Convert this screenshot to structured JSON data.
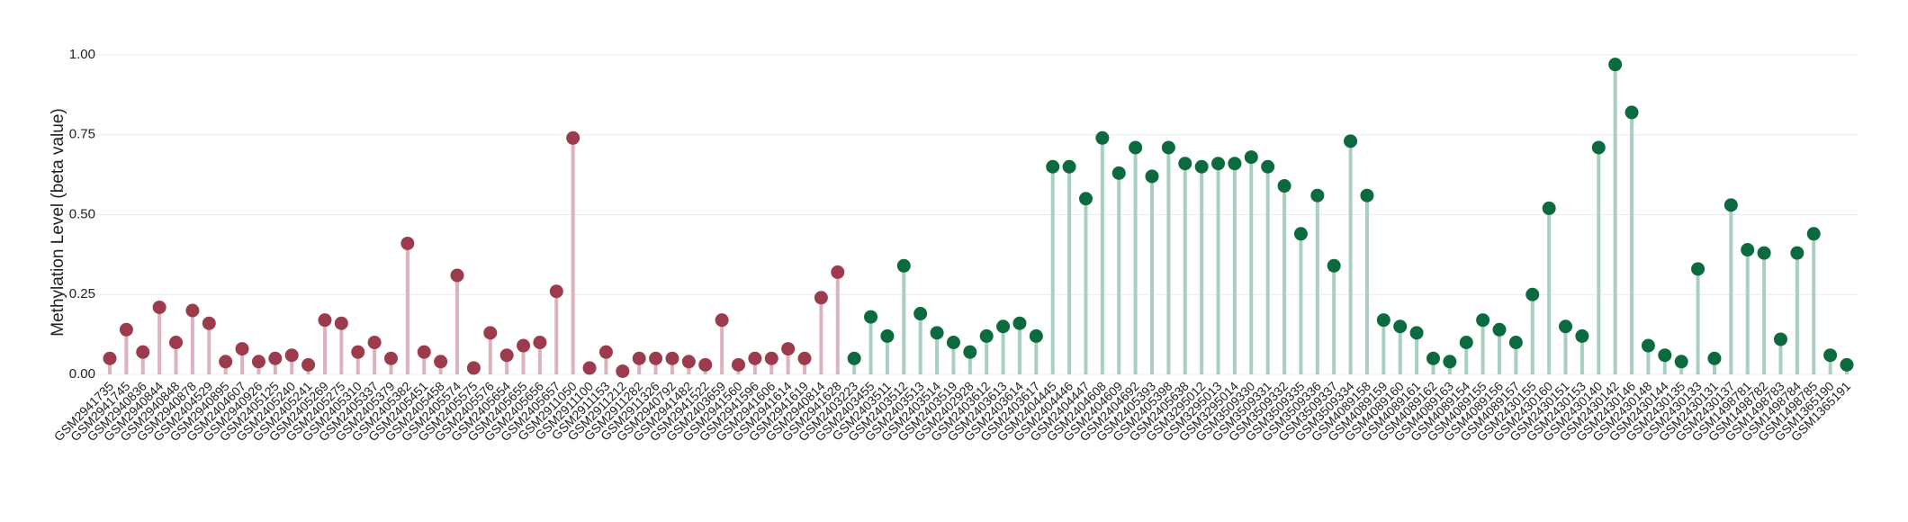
{
  "chart_data": {
    "type": "lollipop",
    "y_label": "Methylation Level (beta value)",
    "ylim": [
      0,
      1
    ],
    "yticks": [
      {
        "value": 0,
        "label": "0.00"
      },
      {
        "value": 0.25,
        "label": "0.25"
      },
      {
        "value": 0.5,
        "label": "0.50"
      },
      {
        "value": 0.75,
        "label": "0.75"
      },
      {
        "value": 1,
        "label": "1.00"
      }
    ],
    "grid": true,
    "categories": [
      "GSM2941735",
      "GSM2941745",
      "GSM2940836",
      "GSM2940844",
      "GSM2940848",
      "GSM2940878",
      "GSM2404529",
      "GSM2940895",
      "GSM2404607",
      "GSM2940926",
      "GSM2405125",
      "GSM2405240",
      "GSM2405241",
      "GSM2405269",
      "GSM2405275",
      "GSM2405310",
      "GSM2405337",
      "GSM2405379",
      "GSM2405382",
      "GSM2405451",
      "GSM2405458",
      "GSM2405574",
      "GSM2405575",
      "GSM2405576",
      "GSM2405654",
      "GSM2405655",
      "GSM2405656",
      "GSM2405657",
      "GSM2911050",
      "GSM2911100",
      "GSM2911153",
      "GSM2911212",
      "GSM2911282",
      "GSM2911326",
      "GSM2940792",
      "GSM2941482",
      "GSM2941522",
      "GSM2403659",
      "GSM2941560",
      "GSM2941596",
      "GSM2941606",
      "GSM2941614",
      "GSM2941619",
      "GSM2940814",
      "GSM2941628",
      "GSM2403223",
      "GSM2403455",
      "GSM2403511",
      "GSM2403512",
      "GSM2403513",
      "GSM2403514",
      "GSM2403519",
      "GSM2402928",
      "GSM2403612",
      "GSM2403613",
      "GSM2403614",
      "GSM2403617",
      "GSM2404445",
      "GSM2404446",
      "GSM2404447",
      "GSM2404608",
      "GSM2404609",
      "GSM2404692",
      "GSM2405393",
      "GSM2405398",
      "GSM2405638",
      "GSM3295012",
      "GSM3295013",
      "GSM3295014",
      "GSM3509330",
      "GSM3509331",
      "GSM3509332",
      "GSM3509335",
      "GSM3509336",
      "GSM3509337",
      "GSM3509334",
      "GSM4089158",
      "GSM4089159",
      "GSM4089160",
      "GSM4089161",
      "GSM4089162",
      "GSM4089163",
      "GSM4089154",
      "GSM4089155",
      "GSM4089156",
      "GSM4089157",
      "GSM2430155",
      "GSM2430160",
      "GSM2430151",
      "GSM2430153",
      "GSM2430140",
      "GSM2430142",
      "GSM2430146",
      "GSM2430148",
      "GSM2430144",
      "GSM2430135",
      "GSM2430133",
      "GSM2430131",
      "GSM2430137",
      "GSM1498781",
      "GSM1498782",
      "GSM1498783",
      "GSM1498784",
      "GSM1498785",
      "GSM1365190",
      "GSM1365191"
    ],
    "series": [
      {
        "color": "#9b3b4c",
        "stem_color": "#dcb3bd",
        "values": [
          0.05,
          0.14,
          0.07,
          0.21,
          0.1,
          0.2,
          0.16,
          0.04,
          0.08,
          0.04,
          0.05,
          0.06,
          0.03,
          0.17,
          0.16,
          0.07,
          0.1,
          0.05,
          0.41,
          0.07,
          0.04,
          0.31,
          0.02,
          0.13,
          0.06,
          0.09,
          0.1,
          0.26,
          0.74,
          0.02,
          0.07,
          0.01,
          0.05,
          0.05,
          0.05,
          0.04,
          0.03,
          0.17,
          0.03,
          0.05,
          0.05,
          0.08,
          0.05,
          0.24,
          0.32,
          null,
          null,
          null,
          null,
          null,
          null,
          null,
          null,
          null,
          null,
          null,
          null,
          null,
          null,
          null,
          null,
          null,
          null,
          null,
          null,
          null,
          null,
          null,
          null,
          null,
          null,
          null,
          null,
          null,
          null,
          null,
          null,
          null,
          null,
          null,
          null,
          null,
          null,
          null,
          null,
          null,
          null,
          null,
          null,
          null,
          null,
          null,
          null,
          null,
          null,
          null,
          null,
          null,
          null,
          null,
          null,
          null,
          null,
          null,
          null,
          null
        ]
      },
      {
        "color": "#0b6b3f",
        "stem_color": "#a9cfc1",
        "values": [
          null,
          null,
          null,
          null,
          null,
          null,
          null,
          null,
          null,
          null,
          null,
          null,
          null,
          null,
          null,
          null,
          null,
          null,
          null,
          null,
          null,
          null,
          null,
          null,
          null,
          null,
          null,
          null,
          null,
          null,
          null,
          null,
          null,
          null,
          null,
          null,
          null,
          null,
          null,
          null,
          null,
          null,
          null,
          null,
          null,
          0.05,
          0.18,
          0.12,
          0.34,
          0.19,
          0.13,
          0.1,
          0.07,
          0.12,
          0.15,
          0.16,
          0.12,
          0.65,
          0.65,
          0.55,
          0.74,
          0.63,
          0.71,
          0.62,
          0.71,
          0.66,
          0.65,
          0.66,
          0.66,
          0.68,
          0.65,
          0.59,
          0.44,
          0.56,
          0.34,
          0.73,
          0.56,
          0.17,
          0.15,
          0.13,
          0.05,
          0.04,
          0.1,
          0.17,
          0.14,
          0.1,
          0.25,
          0.52,
          0.15,
          0.12,
          0.71,
          0.97,
          0.82,
          0.09,
          0.06,
          0.04,
          0.33,
          0.05,
          0.53,
          0.39,
          0.38,
          0.11,
          0.38,
          0.44,
          0.06,
          0.03
        ]
      }
    ]
  }
}
